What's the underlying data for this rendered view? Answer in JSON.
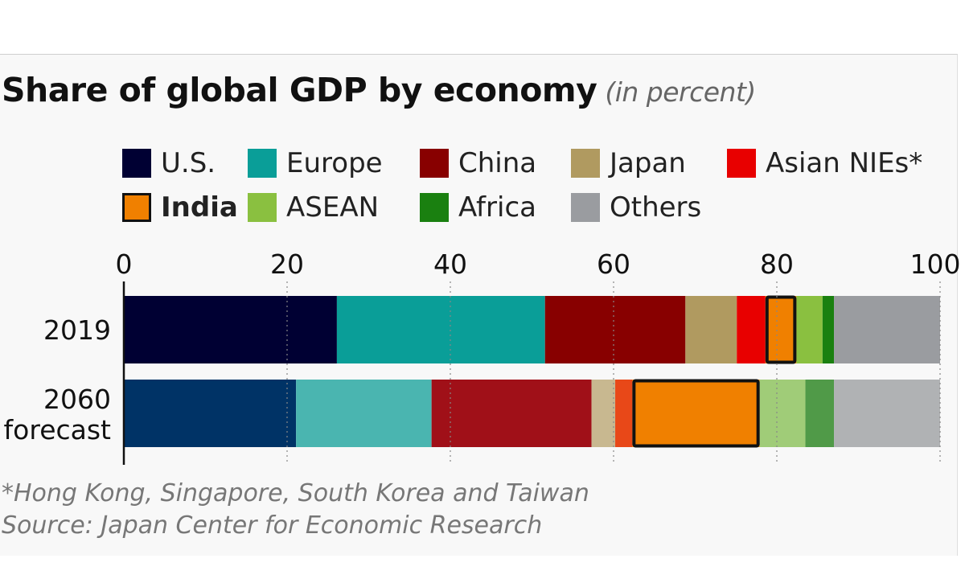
{
  "chart_data": {
    "type": "bar",
    "orientation": "horizontal",
    "stacked": true,
    "title": "Share of global GDP by economy",
    "subtitle": "(in percent)",
    "categories": [
      "2019",
      "2060 forecast"
    ],
    "xlim": [
      0,
      100
    ],
    "xticks": [
      0,
      20,
      40,
      60,
      80,
      100
    ],
    "grid": "vertical dotted",
    "legend_position": "top",
    "highlight": "India",
    "series": [
      {
        "name": "U.S.",
        "values": [
          26.1,
          21.1
        ],
        "colors": [
          "#000033",
          "#003366"
        ]
      },
      {
        "name": "Europe",
        "values": [
          25.5,
          16.6
        ],
        "colors": [
          "#0a9e98",
          "#4ab5b0"
        ]
      },
      {
        "name": "China",
        "values": [
          17.2,
          19.6
        ],
        "colors": [
          "#880000",
          "#a01018"
        ]
      },
      {
        "name": "Japan",
        "values": [
          6.3,
          2.9
        ],
        "colors": [
          "#b09a60",
          "#c8b890"
        ]
      },
      {
        "name": "Asian NIEs*",
        "values": [
          3.5,
          2.1
        ],
        "colors": [
          "#e80000",
          "#e84818"
        ]
      },
      {
        "name": "India",
        "values": [
          3.8,
          15.6
        ],
        "colors": [
          "#f08000",
          "#f08000"
        ]
      },
      {
        "name": "ASEAN",
        "values": [
          3.2,
          5.6
        ],
        "colors": [
          "#8ac040",
          "#a0cc78"
        ]
      },
      {
        "name": "Africa",
        "values": [
          1.4,
          3.5
        ],
        "colors": [
          "#1a8010",
          "#509a48"
        ]
      },
      {
        "name": "Others",
        "values": [
          13.0,
          13.0
        ],
        "colors": [
          "#9a9ca0",
          "#b0b2b4"
        ]
      }
    ],
    "footnotes": [
      "*Hong Kong, Singapore, South Korea and Taiwan",
      "Source: Japan Center for Economic Research"
    ]
  }
}
